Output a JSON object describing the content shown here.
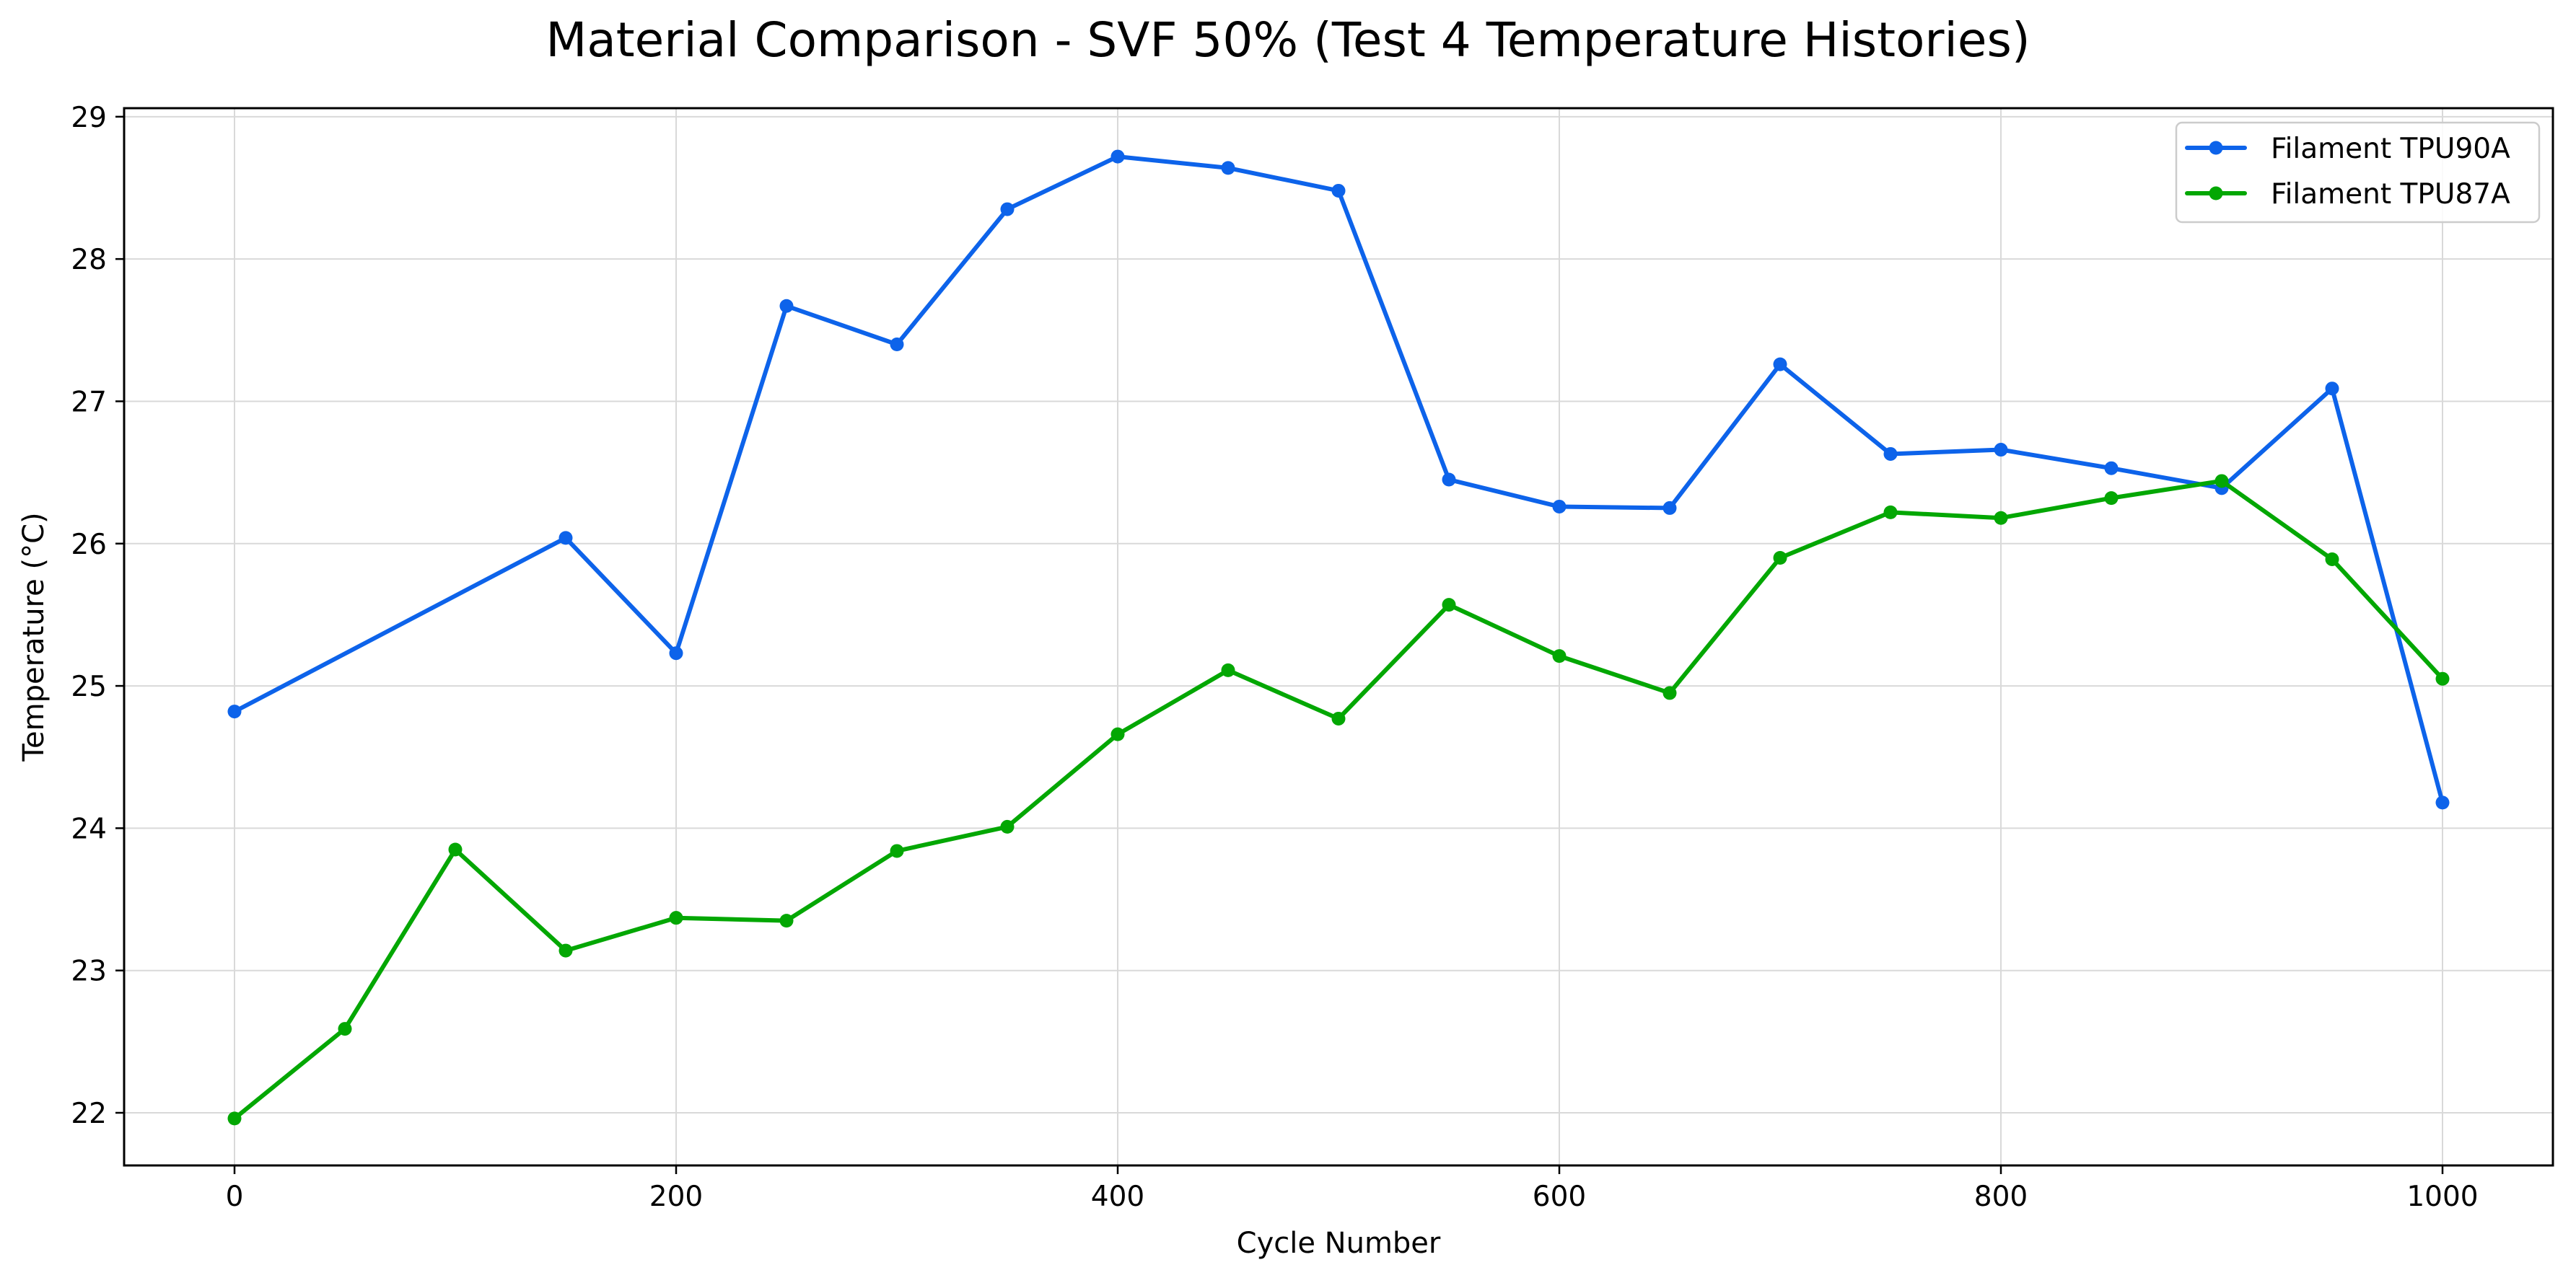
{
  "chart_data": {
    "type": "line",
    "title": "Material Comparison - SVF 50% (Test 4 Temperature Histories)",
    "xlabel": "Cycle Number",
    "ylabel": "Temperature (°C)",
    "xlim": [
      -50,
      1050
    ],
    "ylim": [
      21.63,
      29.06
    ],
    "xticks": [
      0,
      200,
      400,
      600,
      800,
      1000
    ],
    "yticks": [
      22,
      23,
      24,
      25,
      26,
      27,
      28,
      29
    ],
    "grid": true,
    "legend_position": "top-right",
    "series": [
      {
        "name": "Filament TPU90A",
        "color": "#0d63ea",
        "marker": "circle",
        "x": [
          0,
          150,
          200,
          250,
          300,
          350,
          400,
          450,
          500,
          550,
          600,
          650,
          700,
          750,
          800,
          850,
          900,
          950,
          1000
        ],
        "y": [
          24.82,
          26.04,
          25.23,
          27.67,
          27.4,
          28.35,
          28.72,
          28.64,
          28.48,
          26.45,
          26.26,
          26.25,
          27.26,
          26.63,
          26.66,
          26.53,
          26.39,
          27.09,
          24.18
        ]
      },
      {
        "name": "Filament TPU87A",
        "color": "#03a703",
        "marker": "circle",
        "x": [
          0,
          50,
          100,
          150,
          200,
          250,
          300,
          350,
          400,
          450,
          500,
          550,
          600,
          650,
          700,
          750,
          800,
          850,
          900,
          950,
          1000
        ],
        "y": [
          21.96,
          22.59,
          23.85,
          23.14,
          23.37,
          23.35,
          23.84,
          24.01,
          24.66,
          25.11,
          24.77,
          25.57,
          25.21,
          24.95,
          25.9,
          26.22,
          26.18,
          26.32,
          26.44,
          25.89,
          25.05
        ]
      }
    ]
  }
}
